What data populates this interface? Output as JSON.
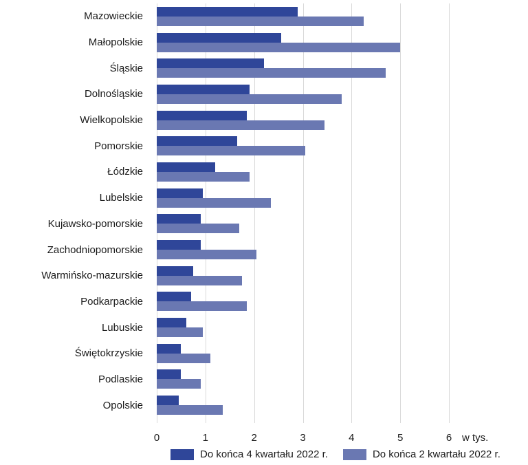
{
  "colors": {
    "series_q4": "#2f4699",
    "series_q2": "#6a78b2",
    "grid": "#d9d9d9",
    "text": "#1a1a1a"
  },
  "chart_data": {
    "type": "bar",
    "orientation": "horizontal",
    "title": "",
    "xlabel": "",
    "ylabel": "",
    "unit_label": "w tys.",
    "grid": true,
    "legend_position": "bottom",
    "categories": [
      "Mazowieckie",
      "Małopolskie",
      "Śląskie",
      "Dolnośląskie",
      "Wielkopolskie",
      "Pomorskie",
      "Łódzkie",
      "Lubelskie",
      "Kujawsko-pomorskie",
      "Zachodniopomorskie",
      "Warmińsko-mazurskie",
      "Podkarpackie",
      "Lubuskie",
      "Świętokrzyskie",
      "Podlaskie",
      "Opolskie"
    ],
    "series": [
      {
        "name": "Do końca 4 kwartału 2022 r.",
        "values": [
          2.9,
          2.55,
          2.2,
          1.9,
          1.85,
          1.65,
          1.2,
          0.95,
          0.9,
          0.9,
          0.75,
          0.7,
          0.6,
          0.5,
          0.5,
          0.45
        ]
      },
      {
        "name": "Do końca 2 kwartału 2022 r.",
        "values": [
          4.25,
          5.0,
          4.7,
          3.8,
          3.45,
          3.05,
          1.9,
          2.35,
          1.7,
          2.05,
          1.75,
          1.85,
          0.95,
          1.1,
          0.9,
          1.35
        ]
      }
    ],
    "x_axis": {
      "min": 0,
      "max": 6,
      "ticks": [
        0,
        1,
        2,
        3,
        4,
        5,
        6
      ]
    }
  }
}
